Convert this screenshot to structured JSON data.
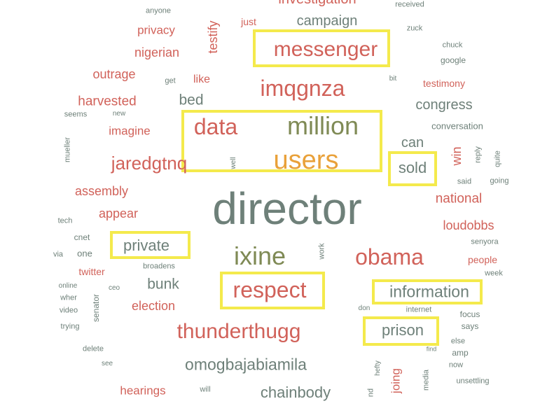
{
  "colors": {
    "red": "#d1625a",
    "gray": "#6e8079",
    "olive": "#7f8a55",
    "orange": "#e9a13a",
    "highlight": "#f4ea4c"
  },
  "words": [
    {
      "text": "director",
      "color": "gray"
    },
    {
      "text": "users",
      "color": "orange"
    },
    {
      "text": "million",
      "color": "olive"
    },
    {
      "text": "data",
      "color": "red"
    },
    {
      "text": "messenger",
      "color": "red"
    },
    {
      "text": "imqgnza",
      "color": "red"
    },
    {
      "text": "ixine",
      "color": "olive"
    },
    {
      "text": "obama",
      "color": "red"
    },
    {
      "text": "respect",
      "color": "red"
    },
    {
      "text": "thunderthugg",
      "color": "red"
    },
    {
      "text": "omogbajabiamila",
      "color": "gray"
    },
    {
      "text": "information",
      "color": "gray"
    },
    {
      "text": "prison",
      "color": "gray"
    },
    {
      "text": "private",
      "color": "gray"
    },
    {
      "text": "sold",
      "color": "gray"
    },
    {
      "text": "jaredgtnq",
      "color": "red"
    },
    {
      "text": "campaign",
      "color": "gray"
    },
    {
      "text": "congress",
      "color": "gray"
    },
    {
      "text": "national",
      "color": "red"
    },
    {
      "text": "loudobbs",
      "color": "red"
    },
    {
      "text": "bunk",
      "color": "gray"
    },
    {
      "text": "bed",
      "color": "gray"
    },
    {
      "text": "chainbody",
      "color": "gray"
    },
    {
      "text": "harvested",
      "color": "red"
    },
    {
      "text": "outrage",
      "color": "red"
    },
    {
      "text": "nigerian",
      "color": "red"
    },
    {
      "text": "privacy",
      "color": "red"
    },
    {
      "text": "imagine",
      "color": "red"
    },
    {
      "text": "assembly",
      "color": "red"
    },
    {
      "text": "appear",
      "color": "red"
    },
    {
      "text": "election",
      "color": "red"
    },
    {
      "text": "hearings",
      "color": "red"
    },
    {
      "text": "testify",
      "color": "red"
    },
    {
      "text": "like",
      "color": "red"
    },
    {
      "text": "can",
      "color": "gray"
    },
    {
      "text": "win",
      "color": "red"
    },
    {
      "text": "testimony",
      "color": "red"
    },
    {
      "text": "people",
      "color": "red"
    },
    {
      "text": "twitter",
      "color": "red"
    },
    {
      "text": "just",
      "color": "red"
    },
    {
      "text": "joing",
      "color": "red"
    },
    {
      "text": "investigation",
      "color": "red"
    },
    {
      "text": "anyone",
      "color": "gray"
    },
    {
      "text": "received",
      "color": "gray"
    },
    {
      "text": "zuck",
      "color": "gray"
    },
    {
      "text": "chuck",
      "color": "gray"
    },
    {
      "text": "google",
      "color": "gray"
    },
    {
      "text": "bit",
      "color": "gray"
    },
    {
      "text": "get",
      "color": "gray"
    },
    {
      "text": "seems",
      "color": "gray"
    },
    {
      "text": "new",
      "color": "gray"
    },
    {
      "text": "conversation",
      "color": "gray"
    },
    {
      "text": "mueller",
      "color": "gray"
    },
    {
      "text": "well",
      "color": "gray"
    },
    {
      "text": "reply",
      "color": "gray"
    },
    {
      "text": "quite",
      "color": "gray"
    },
    {
      "text": "said",
      "color": "gray"
    },
    {
      "text": "going",
      "color": "gray"
    },
    {
      "text": "tech",
      "color": "gray"
    },
    {
      "text": "cnet",
      "color": "gray"
    },
    {
      "text": "via",
      "color": "gray"
    },
    {
      "text": "one",
      "color": "gray"
    },
    {
      "text": "work",
      "color": "gray"
    },
    {
      "text": "senyora",
      "color": "gray"
    },
    {
      "text": "broadens",
      "color": "gray"
    },
    {
      "text": "week",
      "color": "gray"
    },
    {
      "text": "online",
      "color": "gray"
    },
    {
      "text": "ceo",
      "color": "gray"
    },
    {
      "text": "wher",
      "color": "gray"
    },
    {
      "text": "video",
      "color": "gray"
    },
    {
      "text": "senator",
      "color": "gray"
    },
    {
      "text": "don",
      "color": "gray"
    },
    {
      "text": "internet",
      "color": "gray"
    },
    {
      "text": "focus",
      "color": "gray"
    },
    {
      "text": "says",
      "color": "gray"
    },
    {
      "text": "trying",
      "color": "gray"
    },
    {
      "text": "else",
      "color": "gray"
    },
    {
      "text": "find",
      "color": "gray"
    },
    {
      "text": "amp",
      "color": "gray"
    },
    {
      "text": "delete",
      "color": "gray"
    },
    {
      "text": "see",
      "color": "gray"
    },
    {
      "text": "hefty",
      "color": "gray"
    },
    {
      "text": "media",
      "color": "gray"
    },
    {
      "text": "now",
      "color": "gray"
    },
    {
      "text": "unsettling",
      "color": "gray"
    },
    {
      "text": "will",
      "color": "gray"
    },
    {
      "text": "nd",
      "color": "gray"
    }
  ]
}
